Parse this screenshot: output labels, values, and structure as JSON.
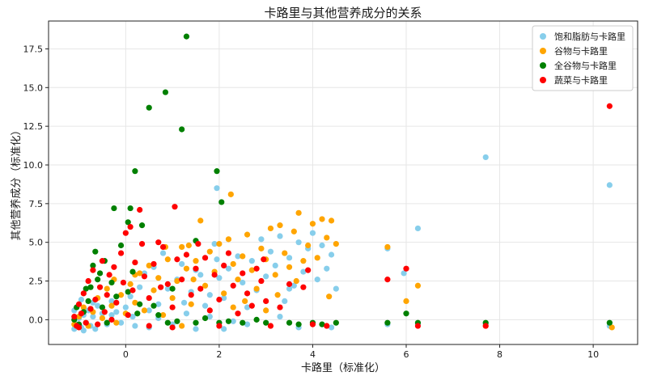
{
  "chart_data": {
    "type": "scatter",
    "title": "卡路里与其他营养成分的关系",
    "xlabel": "卡路里（标准化）",
    "ylabel": "其他营养成分（标准化）",
    "xlim": [
      -1.65,
      10.95
    ],
    "ylim": [
      -1.6,
      19.3
    ],
    "xticks": [
      0,
      2,
      4,
      6,
      8,
      10
    ],
    "yticks": [
      0.0,
      2.5,
      5.0,
      7.5,
      10.0,
      12.5,
      15.0,
      17.5
    ],
    "ytick_labels": [
      "0.0",
      "2.5",
      "5.0",
      "7.5",
      "10.0",
      "12.5",
      "15.0",
      "17.5"
    ],
    "grid": true,
    "legend_position": "top-right",
    "series": [
      {
        "name": "饱和脂肪与卡路里",
        "color": "#87CEEB",
        "points": [
          [
            -1.1,
            -0.6
          ],
          [
            -1.05,
            -0.3
          ],
          [
            -1.0,
            0.1
          ],
          [
            -0.95,
            -0.5
          ],
          [
            -0.9,
            0.3
          ],
          [
            -0.85,
            -0.2
          ],
          [
            -0.8,
            0.6
          ],
          [
            -0.75,
            -0.4
          ],
          [
            -0.7,
            0.2
          ],
          [
            -0.65,
            -0.6
          ],
          [
            -0.6,
            0.9
          ],
          [
            -0.5,
            0.4
          ],
          [
            -0.4,
            -0.3
          ],
          [
            -0.3,
            1.2
          ],
          [
            -0.2,
            0.5
          ],
          [
            -0.1,
            -0.2
          ],
          [
            0.0,
            0.8
          ],
          [
            0.1,
            1.5
          ],
          [
            0.2,
            -0.4
          ],
          [
            0.3,
            2.1
          ],
          [
            0.4,
            3.0
          ],
          [
            0.5,
            0.6
          ],
          [
            0.6,
            3.4
          ],
          [
            0.7,
            1.0
          ],
          [
            0.8,
            4.3
          ],
          [
            0.9,
            2.0
          ],
          [
            1.0,
            -0.3
          ],
          [
            1.1,
            2.6
          ],
          [
            1.2,
            3.6
          ],
          [
            1.3,
            0.4
          ],
          [
            1.4,
            1.8
          ],
          [
            1.5,
            3.2
          ],
          [
            1.6,
            2.9
          ],
          [
            1.7,
            0.9
          ],
          [
            1.8,
            1.6
          ],
          [
            1.9,
            4.9
          ],
          [
            1.95,
            3.9
          ],
          [
            2.0,
            2.7
          ],
          [
            2.1,
            1.4
          ],
          [
            2.2,
            3.3
          ],
          [
            2.3,
            -0.1
          ],
          [
            2.4,
            4.1
          ],
          [
            2.5,
            2.4
          ],
          [
            2.6,
            0.8
          ],
          [
            2.7,
            3.8
          ],
          [
            2.8,
            1.9
          ],
          [
            2.9,
            5.2
          ],
          [
            3.0,
            2.8
          ],
          [
            3.1,
            4.4
          ],
          [
            3.2,
            3.5
          ],
          [
            3.3,
            5.4
          ],
          [
            3.4,
            1.2
          ],
          [
            3.5,
            4.0
          ],
          [
            3.6,
            2.2
          ],
          [
            3.7,
            5.0
          ],
          [
            3.8,
            3.1
          ],
          [
            3.9,
            4.6
          ],
          [
            4.0,
            5.6
          ],
          [
            4.1,
            2.6
          ],
          [
            4.2,
            4.8
          ],
          [
            4.3,
            3.3
          ],
          [
            4.4,
            4.2
          ],
          [
            4.5,
            2.0
          ],
          [
            3.5,
            2.0
          ],
          [
            3.7,
            -0.5
          ],
          [
            4.4,
            -0.5
          ],
          [
            2.1,
            -0.6
          ],
          [
            1.5,
            -0.6
          ],
          [
            0.5,
            -0.5
          ],
          [
            -0.9,
            -0.7
          ],
          [
            1.95,
            8.5
          ],
          [
            5.6,
            4.6
          ],
          [
            5.95,
            3.0
          ],
          [
            6.25,
            5.9
          ],
          [
            7.7,
            10.5
          ],
          [
            10.35,
            8.7
          ],
          [
            7.7,
            -0.3
          ],
          [
            10.35,
            -0.4
          ],
          [
            6.25,
            -0.3
          ],
          [
            5.6,
            -0.3
          ],
          [
            -1.1,
            0.6
          ],
          [
            -0.95,
            1.3
          ],
          [
            -0.7,
            1.1
          ],
          [
            -0.3,
            0.3
          ],
          [
            0.15,
            0.2
          ],
          [
            0.7,
            0.1
          ],
          [
            1.25,
            1.1
          ],
          [
            1.8,
            0.2
          ],
          [
            2.6,
            -0.3
          ],
          [
            3.3,
            0.2
          ]
        ]
      },
      {
        "name": "谷物与卡路里",
        "color": "#FFA500",
        "points": [
          [
            -1.1,
            -0.3
          ],
          [
            -1.0,
            0.2
          ],
          [
            -0.9,
            0.8
          ],
          [
            -0.8,
            -0.4
          ],
          [
            -0.7,
            0.5
          ],
          [
            -0.6,
            1.4
          ],
          [
            -0.5,
            0.1
          ],
          [
            -0.4,
            2.0
          ],
          [
            -0.3,
            0.9
          ],
          [
            -0.2,
            -0.2
          ],
          [
            -0.1,
            1.6
          ],
          [
            0.0,
            0.4
          ],
          [
            0.1,
            2.3
          ],
          [
            0.2,
            1.1
          ],
          [
            0.3,
            3.0
          ],
          [
            0.4,
            0.6
          ],
          [
            0.5,
            3.5
          ],
          [
            0.6,
            1.9
          ],
          [
            0.7,
            2.7
          ],
          [
            0.8,
            0.3
          ],
          [
            0.9,
            3.9
          ],
          [
            1.0,
            1.4
          ],
          [
            1.1,
            2.5
          ],
          [
            1.2,
            4.7
          ],
          [
            1.3,
            3.3
          ],
          [
            1.35,
            4.8
          ],
          [
            1.4,
            1.0
          ],
          [
            1.5,
            3.8
          ],
          [
            1.6,
            6.4
          ],
          [
            1.7,
            2.2
          ],
          [
            1.8,
            4.4
          ],
          [
            1.9,
            3.1
          ],
          [
            2.0,
            4.9
          ],
          [
            2.1,
            1.7
          ],
          [
            2.2,
            5.2
          ],
          [
            2.25,
            8.1
          ],
          [
            2.3,
            3.6
          ],
          [
            2.4,
            2.6
          ],
          [
            2.5,
            4.1
          ],
          [
            2.6,
            5.5
          ],
          [
            2.7,
            3.2
          ],
          [
            2.8,
            2.0
          ],
          [
            2.9,
            4.6
          ],
          [
            3.0,
            3.9
          ],
          [
            3.1,
            5.9
          ],
          [
            3.2,
            2.9
          ],
          [
            3.3,
            6.1
          ],
          [
            3.4,
            4.3
          ],
          [
            3.5,
            3.4
          ],
          [
            3.6,
            5.7
          ],
          [
            3.7,
            6.9
          ],
          [
            3.8,
            3.8
          ],
          [
            3.9,
            4.8
          ],
          [
            4.0,
            6.2
          ],
          [
            4.1,
            4.0
          ],
          [
            4.2,
            6.5
          ],
          [
            4.3,
            5.3
          ],
          [
            4.4,
            6.4
          ],
          [
            4.5,
            4.9
          ],
          [
            3.65,
            2.5
          ],
          [
            4.35,
            1.5
          ],
          [
            3.0,
            0.6
          ],
          [
            2.3,
            0.8
          ],
          [
            1.2,
            -0.4
          ],
          [
            5.6,
            4.7
          ],
          [
            6.25,
            2.2
          ],
          [
            6.0,
            1.2
          ],
          [
            10.4,
            -0.5
          ],
          [
            7.7,
            -0.4
          ],
          [
            0.2,
            2.9
          ],
          [
            -0.25,
            2.6
          ],
          [
            0.85,
            4.7
          ],
          [
            1.45,
            2.6
          ],
          [
            2.55,
            1.2
          ],
          [
            3.25,
            1.6
          ]
        ]
      },
      {
        "name": "全谷物与卡路里",
        "color": "#008000",
        "points": [
          [
            -1.1,
            0.0
          ],
          [
            -1.0,
            -0.3
          ],
          [
            -0.9,
            0.5
          ],
          [
            -0.8,
            1.2
          ],
          [
            -0.75,
            2.1
          ],
          [
            -0.7,
            3.5
          ],
          [
            -0.65,
            4.4
          ],
          [
            -0.6,
            2.6
          ],
          [
            -0.5,
            0.8
          ],
          [
            -0.45,
            3.8
          ],
          [
            -0.4,
            -0.2
          ],
          [
            -0.3,
            2.4
          ],
          [
            -0.25,
            7.2
          ],
          [
            -0.2,
            1.5
          ],
          [
            -0.1,
            4.8
          ],
          [
            0.05,
            6.3
          ],
          [
            0.1,
            7.2
          ],
          [
            0.15,
            3.1
          ],
          [
            0.2,
            9.6
          ],
          [
            0.25,
            0.4
          ],
          [
            0.35,
            6.1
          ],
          [
            0.5,
            13.7
          ],
          [
            0.85,
            14.7
          ],
          [
            1.2,
            12.3
          ],
          [
            1.3,
            18.3
          ],
          [
            1.95,
            9.6
          ],
          [
            2.05,
            7.6
          ],
          [
            1.5,
            5.1
          ],
          [
            1.0,
            2.0
          ],
          [
            0.6,
            0.9
          ],
          [
            0.9,
            -0.2
          ],
          [
            1.5,
            -0.2
          ],
          [
            2.0,
            -0.2
          ],
          [
            2.5,
            -0.2
          ],
          [
            3.0,
            -0.2
          ],
          [
            3.5,
            -0.2
          ],
          [
            4.0,
            -0.2
          ],
          [
            4.5,
            -0.2
          ],
          [
            4.2,
            -0.3
          ],
          [
            3.7,
            -0.3
          ],
          [
            5.6,
            -0.2
          ],
          [
            6.0,
            0.4
          ],
          [
            6.25,
            -0.2
          ],
          [
            7.7,
            -0.2
          ],
          [
            10.35,
            -0.2
          ],
          [
            -1.05,
            0.8
          ],
          [
            -0.85,
            2.0
          ],
          [
            -0.55,
            3.0
          ],
          [
            0.05,
            1.8
          ],
          [
            0.3,
            1.0
          ],
          [
            0.7,
            0.3
          ],
          [
            1.1,
            -0.1
          ],
          [
            1.7,
            0.1
          ],
          [
            2.2,
            -0.1
          ],
          [
            2.8,
            0.0
          ]
        ]
      },
      {
        "name": "蔬菜与卡路里",
        "color": "#FF0000",
        "points": [
          [
            -1.1,
            0.2
          ],
          [
            -1.05,
            -0.4
          ],
          [
            -1.0,
            1.0
          ],
          [
            -0.95,
            0.4
          ],
          [
            -0.9,
            1.7
          ],
          [
            -0.85,
            -0.2
          ],
          [
            -0.8,
            2.5
          ],
          [
            -0.75,
            0.7
          ],
          [
            -0.7,
            3.2
          ],
          [
            -0.65,
            1.3
          ],
          [
            -0.6,
            -0.3
          ],
          [
            -0.55,
            2.1
          ],
          [
            -0.5,
            3.8
          ],
          [
            -0.45,
            0.5
          ],
          [
            -0.4,
            1.6
          ],
          [
            -0.35,
            2.9
          ],
          [
            -0.3,
            0.0
          ],
          [
            -0.25,
            3.4
          ],
          [
            -0.2,
            1.1
          ],
          [
            -0.1,
            4.3
          ],
          [
            -0.05,
            2.4
          ],
          [
            0.0,
            5.6
          ],
          [
            0.05,
            0.3
          ],
          [
            0.1,
            6.0
          ],
          [
            0.15,
            1.9
          ],
          [
            0.2,
            3.7
          ],
          [
            0.3,
            7.1
          ],
          [
            0.35,
            4.9
          ],
          [
            0.4,
            2.8
          ],
          [
            0.5,
            1.4
          ],
          [
            0.6,
            3.6
          ],
          [
            0.7,
            5.0
          ],
          [
            0.8,
            4.7
          ],
          [
            0.9,
            2.3
          ],
          [
            1.0,
            0.8
          ],
          [
            1.05,
            7.3
          ],
          [
            1.1,
            3.9
          ],
          [
            1.2,
            2.6
          ],
          [
            1.3,
            4.2
          ],
          [
            1.4,
            1.6
          ],
          [
            1.5,
            3.3
          ],
          [
            1.6,
            2.0
          ],
          [
            1.7,
            4.0
          ],
          [
            1.8,
            0.6
          ],
          [
            1.9,
            2.9
          ],
          [
            2.0,
            1.3
          ],
          [
            2.1,
            3.5
          ],
          [
            2.2,
            4.3
          ],
          [
            2.3,
            2.2
          ],
          [
            2.4,
            0.4
          ],
          [
            2.5,
            3.0
          ],
          [
            2.6,
            1.7
          ],
          [
            2.7,
            0.9
          ],
          [
            2.8,
            3.3
          ],
          [
            2.9,
            2.5
          ],
          [
            3.0,
            1.2
          ],
          [
            3.1,
            -0.4
          ],
          [
            3.3,
            0.8
          ],
          [
            3.5,
            2.3
          ],
          [
            3.8,
            2.1
          ],
          [
            3.9,
            3.2
          ],
          [
            4.0,
            -0.3
          ],
          [
            4.3,
            -0.4
          ],
          [
            2.0,
            -0.4
          ],
          [
            1.0,
            -0.5
          ],
          [
            0.5,
            -0.4
          ],
          [
            -1.0,
            -0.5
          ],
          [
            5.6,
            2.6
          ],
          [
            6.0,
            3.3
          ],
          [
            6.25,
            -0.4
          ],
          [
            7.7,
            -0.4
          ],
          [
            10.35,
            13.8
          ],
          [
            2.95,
            3.9
          ],
          [
            1.55,
            4.9
          ],
          [
            0.75,
            2.1
          ]
        ]
      }
    ]
  }
}
